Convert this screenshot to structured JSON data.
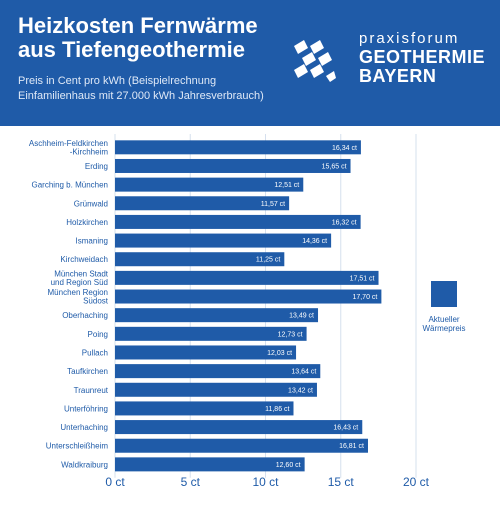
{
  "header": {
    "title_line1": "Heizkosten Fernwärme",
    "title_line2": "aus Tiefengeothermie",
    "subtitle_line1": "Preis in Cent pro kWh (Beispielrechnung",
    "subtitle_line2": "Einfamilienhaus mit 27.000 kWh Jahresverbrauch)",
    "brand_line1": "praxisforum",
    "brand_line2": "GEOTHERMIE",
    "brand_line3": "BAYERN",
    "logo_icon": "bavarian-diamond-flag-icon"
  },
  "colors": {
    "header_bg": "#1f5ba8",
    "bar": "#1f5ba8",
    "text": "#1f5ba8",
    "grid": "#d6e0ee"
  },
  "chart_data": {
    "type": "bar",
    "orientation": "horizontal",
    "categories": [
      "Aschheim-Feldkirchen\n-Kirchheim",
      "Erding",
      "Garching b. München",
      "Grünwald",
      "Holzkirchen",
      "Ismaning",
      "Kirchweidach",
      "München Stadt\nund Region Süd",
      "München Region\nSüdost",
      "Oberhaching",
      "Poing",
      "Pullach",
      "Taufkirchen",
      "Traunreut",
      "Unterföhring",
      "Unterhaching",
      "Unterschleißheim",
      "Waldkraiburg"
    ],
    "values": [
      16.34,
      15.65,
      12.51,
      11.57,
      16.32,
      14.36,
      11.25,
      17.51,
      17.7,
      13.49,
      12.73,
      12.03,
      13.64,
      13.42,
      11.86,
      16.43,
      16.81,
      12.6
    ],
    "data_labels": [
      "16,34 ct",
      "15,65 ct",
      "12,51 ct",
      "11,57 ct",
      "16,32 ct",
      "14,36 ct",
      "11,25 ct",
      "17,51 ct",
      "17,70 ct",
      "13,49 ct",
      "12,73 ct",
      "12,03 ct",
      "13,64 ct",
      "13,42 ct",
      "11,86 ct",
      "16,43 ct",
      "16,81 ct",
      "12,60 ct"
    ],
    "xlim": [
      0,
      20
    ],
    "xticks": [
      0,
      5,
      10,
      15,
      20
    ],
    "xtick_labels": [
      "0 ct",
      "5 ct",
      "10 ct",
      "15 ct",
      "20 ct"
    ],
    "grid": true,
    "legend": {
      "position": "right",
      "label_line1": "Aktueller",
      "label_line2": "Wärmepreis"
    }
  }
}
